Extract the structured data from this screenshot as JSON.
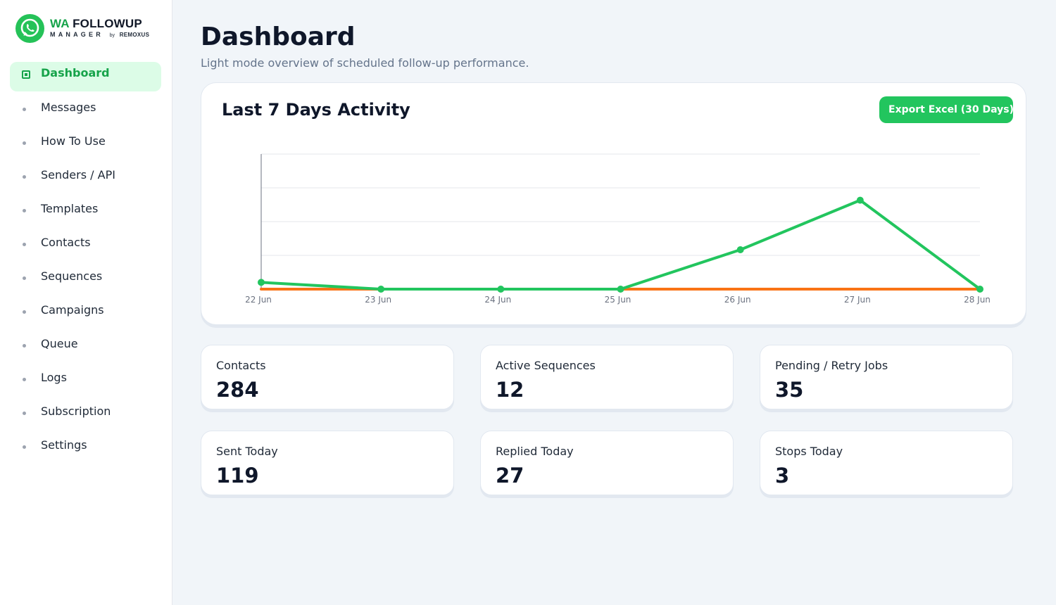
{
  "brand": {
    "title_prefix": "WA",
    "title_rest": " FOLLOWUP",
    "subtitle": "MANAGER",
    "by": "by",
    "company": "REMOXUS",
    "color": "#22c55e"
  },
  "sidebar": {
    "items": [
      {
        "label": "Dashboard",
        "icon": "dashboard-icon",
        "active": true
      },
      {
        "label": "Messages"
      },
      {
        "label": "How To Use"
      },
      {
        "label": "Senders / API"
      },
      {
        "label": "Templates"
      },
      {
        "label": "Contacts"
      },
      {
        "label": "Sequences"
      },
      {
        "label": "Campaigns"
      },
      {
        "label": "Queue"
      },
      {
        "label": "Logs"
      },
      {
        "label": "Subscription"
      },
      {
        "label": "Settings"
      }
    ]
  },
  "header": {
    "title": "Dashboard",
    "subtitle": "Light mode overview of scheduled follow-up performance."
  },
  "activity": {
    "title": "Last 7 Days Activity",
    "export_label": "Export Excel (30 Days)"
  },
  "chart_data": {
    "type": "line",
    "categories": [
      "22 Jun",
      "23 Jun",
      "24 Jun",
      "25 Jun",
      "26 Jun",
      "27 Jun",
      "28 Jun"
    ],
    "ylim": [
      0,
      120
    ],
    "grid": true,
    "series": [
      {
        "values": [
          6,
          0,
          0,
          0,
          35,
          79,
          0
        ],
        "color": "#22c55e",
        "markers": true
      },
      {
        "values": [
          0,
          0,
          0,
          0,
          0,
          0,
          0
        ],
        "color": "#f97316",
        "markers": false
      }
    ]
  },
  "stats": [
    {
      "label": "Contacts",
      "value": "284"
    },
    {
      "label": "Active Sequences",
      "value": "12"
    },
    {
      "label": "Pending / Retry Jobs",
      "value": "35"
    },
    {
      "label": "Sent Today",
      "value": "119"
    },
    {
      "label": "Replied Today",
      "value": "27"
    },
    {
      "label": "Stops Today",
      "value": "3"
    }
  ]
}
